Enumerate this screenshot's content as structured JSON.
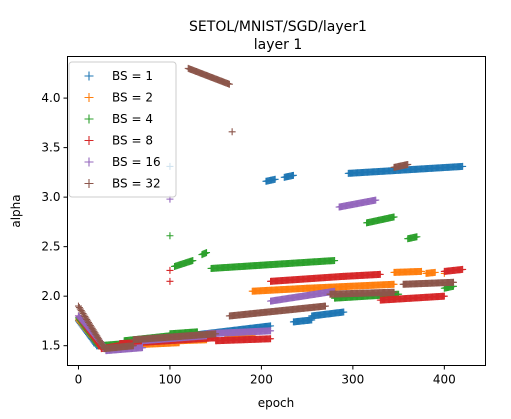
{
  "chart_data": {
    "type": "scatter",
    "title": "SETOL/MNIST/SGD/layer1",
    "subtitle": "layer 1",
    "xlabel": "epoch",
    "ylabel": "alpha",
    "xlim": [
      -12,
      445
    ],
    "ylim": [
      1.3,
      4.42
    ],
    "xticks": [
      "0",
      "100",
      "200",
      "300",
      "400"
    ],
    "yticks": [
      "1.5",
      "2.0",
      "2.5",
      "3.0",
      "3.5",
      "4.0"
    ],
    "grid": false,
    "legend_position": "top-left",
    "marker": "+",
    "series": [
      {
        "name": "BS = 1",
        "color": "#1f77b4",
        "segments": [
          {
            "x": [
              0,
              20
            ],
            "y": [
              1.75,
              1.5
            ]
          },
          {
            "x": [
              20,
              45
            ],
            "y": [
              1.5,
              1.49
            ]
          },
          {
            "x": [
              45,
              120
            ],
            "y": [
              1.52,
              1.58
            ]
          },
          {
            "x": [
              120,
              210
            ],
            "y": [
              1.6,
              1.7
            ]
          },
          {
            "x": [
              205,
              215
            ],
            "y": [
              3.16,
              3.18
            ]
          },
          {
            "x": [
              225,
              235
            ],
            "y": [
              3.2,
              3.22
            ]
          },
          {
            "x": [
              235,
              255
            ],
            "y": [
              1.74,
              1.76
            ]
          },
          {
            "x": [
              255,
              290
            ],
            "y": [
              1.8,
              1.84
            ]
          },
          {
            "x": [
              295,
              420
            ],
            "y": [
              3.24,
              3.31
            ]
          }
        ],
        "points": [
          {
            "x": 100,
            "y": 3.31
          }
        ]
      },
      {
        "name": "BS = 2",
        "color": "#ff7f0e",
        "segments": [
          {
            "x": [
              0,
              22
            ],
            "y": [
              1.76,
              1.5
            ]
          },
          {
            "x": [
              22,
              40
            ],
            "y": [
              1.5,
              1.48
            ]
          },
          {
            "x": [
              40,
              110
            ],
            "y": [
              1.5,
              1.53
            ]
          },
          {
            "x": [
              110,
              140
            ],
            "y": [
              1.55,
              1.56
            ]
          },
          {
            "x": [
              160,
              190
            ],
            "y": [
              1.58,
              1.6
            ]
          },
          {
            "x": [
              190,
              250
            ],
            "y": [
              2.05,
              2.08
            ]
          },
          {
            "x": [
              250,
              345
            ],
            "y": [
              2.08,
              2.12
            ]
          },
          {
            "x": [
              345,
              375
            ],
            "y": [
              2.24,
              2.25
            ]
          },
          {
            "x": [
              380,
              390
            ],
            "y": [
              2.23,
              2.24
            ]
          }
        ],
        "points": [
          {
            "x": 400,
            "y": 2.23
          }
        ]
      },
      {
        "name": "BS = 4",
        "color": "#2ca02c",
        "segments": [
          {
            "x": [
              0,
              22
            ],
            "y": [
              1.78,
              1.5
            ]
          },
          {
            "x": [
              22,
              50
            ],
            "y": [
              1.5,
              1.52
            ]
          },
          {
            "x": [
              50,
              100
            ],
            "y": [
              1.55,
              1.6
            ]
          },
          {
            "x": [
              100,
              130
            ],
            "y": [
              1.62,
              1.64
            ]
          },
          {
            "x": [
              105,
              125
            ],
            "y": [
              2.3,
              2.36
            ]
          },
          {
            "x": [
              135,
              140
            ],
            "y": [
              2.42,
              2.44
            ]
          },
          {
            "x": [
              145,
              280
            ],
            "y": [
              2.28,
              2.36
            ]
          },
          {
            "x": [
              280,
              350
            ],
            "y": [
              1.98,
              2.02
            ]
          },
          {
            "x": [
              315,
              345
            ],
            "y": [
              2.74,
              2.8
            ]
          },
          {
            "x": [
              360,
              370
            ],
            "y": [
              2.58,
              2.6
            ]
          },
          {
            "x": [
              400,
              410
            ],
            "y": [
              2.08,
              2.1
            ]
          }
        ],
        "points": [
          {
            "x": 100,
            "y": 2.61
          }
        ]
      },
      {
        "name": "BS = 8",
        "color": "#d62728",
        "segments": [
          {
            "x": [
              0,
              25
            ],
            "y": [
              1.8,
              1.48
            ]
          },
          {
            "x": [
              25,
              45
            ],
            "y": [
              1.47,
              1.5
            ]
          },
          {
            "x": [
              45,
              150
            ],
            "y": [
              1.52,
              1.58
            ]
          },
          {
            "x": [
              150,
              210
            ],
            "y": [
              1.55,
              1.57
            ]
          },
          {
            "x": [
              210,
              290
            ],
            "y": [
              2.15,
              2.2
            ]
          },
          {
            "x": [
              290,
              330
            ],
            "y": [
              2.2,
              2.22
            ]
          },
          {
            "x": [
              330,
              400
            ],
            "y": [
              1.96,
              2.0
            ]
          },
          {
            "x": [
              400,
              420
            ],
            "y": [
              2.25,
              2.27
            ]
          }
        ],
        "points": [
          {
            "x": 100,
            "y": 2.15
          },
          {
            "x": 100,
            "y": 2.26
          }
        ]
      },
      {
        "name": "BS = 16",
        "color": "#9467bd",
        "segments": [
          {
            "x": [
              0,
              30
            ],
            "y": [
              1.8,
              1.47
            ]
          },
          {
            "x": [
              30,
              70
            ],
            "y": [
              1.45,
              1.48
            ]
          },
          {
            "x": [
              70,
              140
            ],
            "y": [
              1.55,
              1.6
            ]
          },
          {
            "x": [
              140,
              210
            ],
            "y": [
              1.62,
              1.65
            ]
          },
          {
            "x": [
              210,
              280
            ],
            "y": [
              1.95,
              2.05
            ]
          },
          {
            "x": [
              285,
              325
            ],
            "y": [
              2.9,
              2.97
            ]
          }
        ],
        "points": [
          {
            "x": 100,
            "y": 2.98
          }
        ]
      },
      {
        "name": "BS = 32",
        "color": "#8c564b",
        "segments": [
          {
            "x": [
              0,
              28
            ],
            "y": [
              1.9,
              1.48
            ]
          },
          {
            "x": [
              28,
              60
            ],
            "y": [
              1.47,
              1.5
            ]
          },
          {
            "x": [
              60,
              150
            ],
            "y": [
              1.56,
              1.62
            ]
          },
          {
            "x": [
              120,
              165
            ],
            "y": [
              4.3,
              4.14
            ]
          },
          {
            "x": [
              165,
              270
            ],
            "y": [
              1.8,
              1.9
            ]
          },
          {
            "x": [
              275,
              345
            ],
            "y": [
              2.02,
              2.04
            ]
          },
          {
            "x": [
              345,
              360
            ],
            "y": [
              3.3,
              3.33
            ]
          },
          {
            "x": [
              355,
              410
            ],
            "y": [
              2.12,
              2.14
            ]
          }
        ],
        "points": [
          {
            "x": 168,
            "y": 3.66
          }
        ]
      }
    ]
  }
}
